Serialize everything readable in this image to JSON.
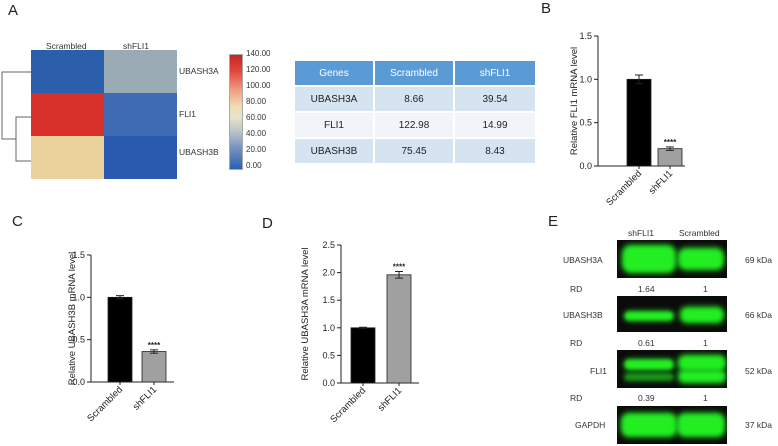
{
  "panels": {
    "a": "A",
    "b": "B",
    "c": "C",
    "d": "D",
    "e": "E"
  },
  "heatmap": {
    "columns": [
      "Scrambled",
      "shFLI1"
    ],
    "rows": [
      "UBASH3A",
      "FLI1",
      "UBASH3B"
    ],
    "colorbar_ticks": [
      "140.00",
      "120.00",
      "100.00",
      "80.00",
      "60.00",
      "40.00",
      "20.00",
      "0.00"
    ],
    "colors": {
      "UBASH3A_scr": "#2b5fab",
      "UBASH3A_sh": "#9aabb5",
      "FLI1_scr": "#d8312b",
      "FLI1_sh": "#3f6bb2",
      "UBASH3B_scr": "#ebd19c",
      "UBASH3B_sh": "#2a5bb0"
    }
  },
  "table": {
    "headers": [
      "Genes",
      "Scrambled",
      "shFLI1"
    ],
    "rows": [
      [
        "UBASH3A",
        "8.66",
        "39.54"
      ],
      [
        "FLI1",
        "122.98",
        "14.99"
      ],
      [
        "UBASH3B",
        "75.45",
        "8.43"
      ]
    ]
  },
  "chart_data": [
    {
      "id": "B",
      "type": "bar",
      "categories": [
        "Scrambled",
        "shFLI1"
      ],
      "values": [
        1.0,
        0.2
      ],
      "errors": [
        0.05,
        0.02
      ],
      "colors": [
        "#000000",
        "#a0a0a0"
      ],
      "ylabel": "Relative FLI1 mRNA level",
      "ylim": [
        0,
        1.5
      ],
      "ticks": [
        "0.0",
        "0.5",
        "1.0",
        "1.5"
      ],
      "tick_values": [
        0,
        0.5,
        1.0,
        1.5
      ],
      "significance": "****"
    },
    {
      "id": "C",
      "type": "bar",
      "categories": [
        "Scrambled",
        "shFLI1"
      ],
      "values": [
        1.0,
        0.36
      ],
      "errors": [
        0.02,
        0.02
      ],
      "colors": [
        "#000000",
        "#a0a0a0"
      ],
      "ylabel": "Relative UBASH3B mRNA level",
      "ylim": [
        0,
        1.5
      ],
      "ticks": [
        "0.0",
        "0.5",
        "1.0",
        "1.5"
      ],
      "tick_values": [
        0,
        0.5,
        1.0,
        1.5
      ],
      "significance": "****"
    },
    {
      "id": "D",
      "type": "bar",
      "categories": [
        "Scrambled",
        "shFLI1"
      ],
      "values": [
        1.0,
        1.96
      ],
      "errors": [
        0.01,
        0.06
      ],
      "colors": [
        "#000000",
        "#a0a0a0"
      ],
      "ylabel": "Relative UBASH3A mRNA level",
      "ylim": [
        0,
        2.5
      ],
      "ticks": [
        "0.0",
        "0.5",
        "1.0",
        "1.5",
        "2.0",
        "2.5"
      ],
      "tick_values": [
        0,
        0.5,
        1.0,
        1.5,
        2.0,
        2.5
      ],
      "significance": "****"
    }
  ],
  "blot": {
    "columns": [
      "shFLI1",
      "Scrambled"
    ],
    "proteins": [
      "UBASH3A",
      "UBASH3B",
      "FLI1",
      "GAPDH"
    ],
    "sizes": [
      "69 kDa",
      "66 kDa",
      "52 kDa",
      "37 kDa"
    ],
    "rd_label": "RD",
    "rd_values": [
      [
        "1.64",
        "1"
      ],
      [
        "0.61",
        "1"
      ],
      [
        "0.39",
        "1"
      ]
    ],
    "band_color": "#22ee22"
  }
}
